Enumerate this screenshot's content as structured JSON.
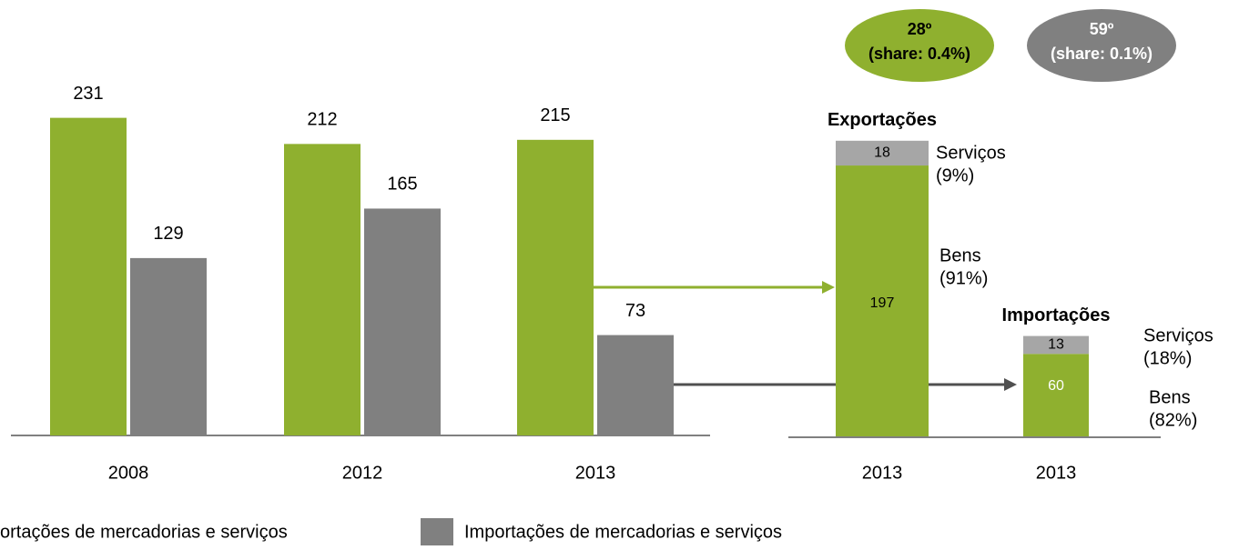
{
  "chart_data": [
    {
      "type": "bar",
      "categories": [
        "2008",
        "2012",
        "2013"
      ],
      "series": [
        {
          "name": "ortações de mercadorias e serviços",
          "color": "#8fb02f",
          "values": [
            231,
            212,
            215
          ]
        },
        {
          "name": "Importações de mercadorias e serviços",
          "color": "#808080",
          "values": [
            129,
            165,
            73
          ]
        }
      ],
      "ylim": [
        0,
        240
      ],
      "grid": false
    },
    {
      "type": "stacked_bar",
      "categories": [
        "2013",
        "2013"
      ],
      "stack_titles": [
        "Exportações",
        "Importações"
      ],
      "series": [
        {
          "color": "#8fb02f",
          "values": [
            197,
            60
          ]
        },
        {
          "color": "#a6a6a6",
          "values": [
            18,
            13
          ]
        }
      ],
      "ylim": [
        0,
        240
      ],
      "annotations": [
        {
          "lines": [
            "Serviços",
            "(9%)"
          ]
        },
        {
          "lines": [
            "Bens",
            "(91%)"
          ]
        },
        {
          "lines": [
            "Serviços",
            "(18%)"
          ]
        },
        {
          "lines": [
            "Bens",
            "(82%)"
          ]
        },
        {
          "lines": [
            "28º",
            "(share: 0.4%)"
          ],
          "color": "#8fb02f"
        },
        {
          "lines": [
            "59º",
            "(share: 0.1%)"
          ],
          "color": "#808080"
        }
      ]
    }
  ]
}
